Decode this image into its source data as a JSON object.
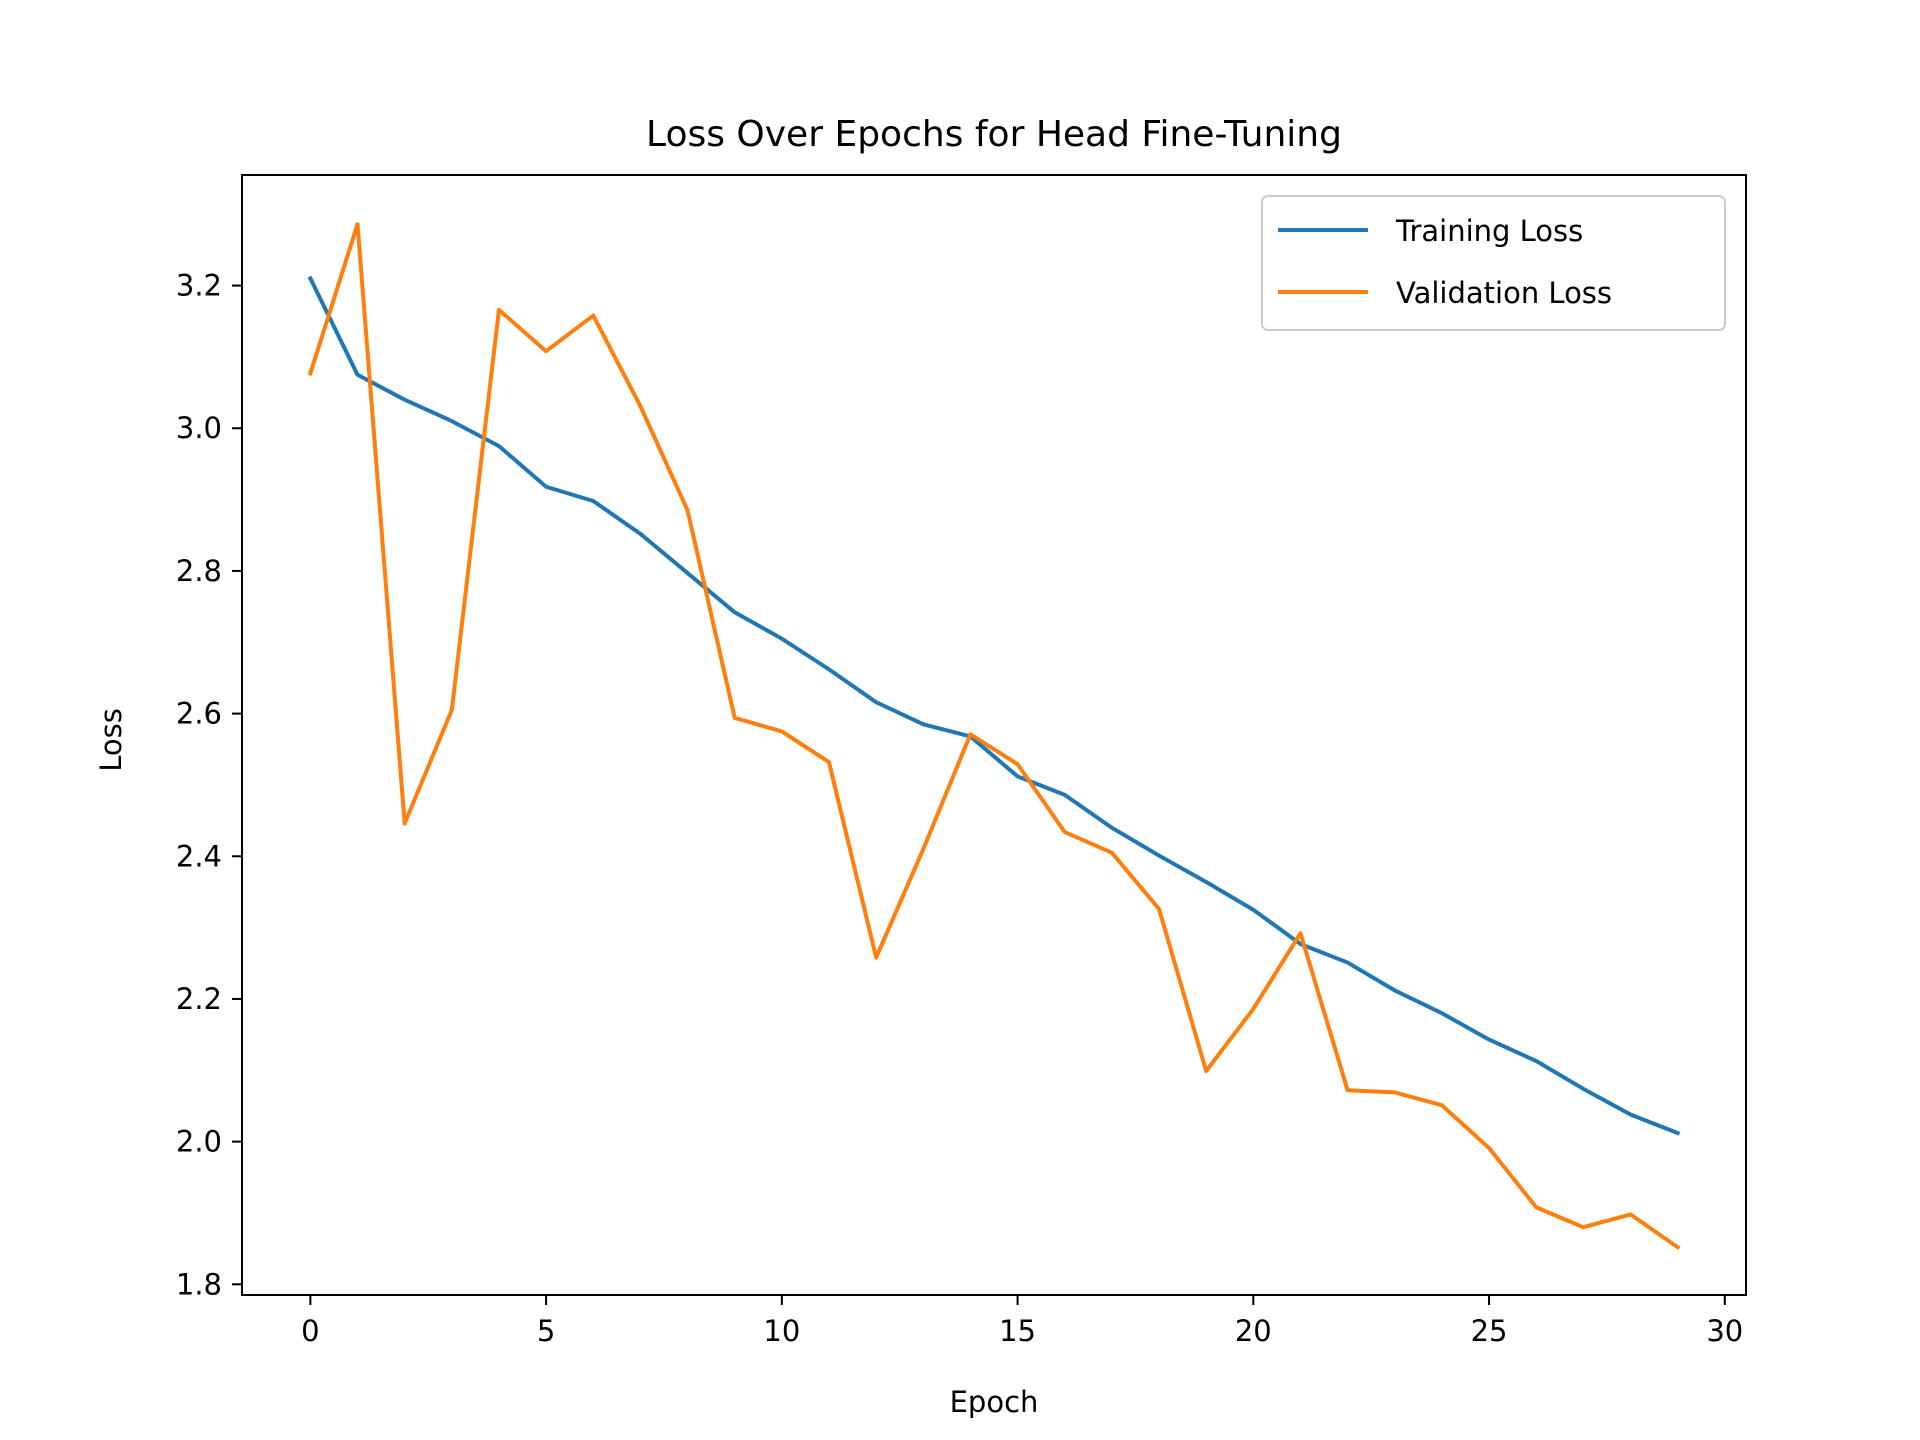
{
  "chart_data": {
    "type": "line",
    "title": "Loss Over Epochs for Head Fine-Tuning",
    "xlabel": "Epoch",
    "ylabel": "Loss",
    "xlim": [
      -1.45,
      30.45
    ],
    "ylim": [
      1.785,
      3.355
    ],
    "xticks": [
      0,
      5,
      10,
      15,
      20,
      25,
      30
    ],
    "xtick_labels": [
      "0",
      "5",
      "10",
      "15",
      "20",
      "25",
      "30"
    ],
    "yticks": [
      1.8,
      2.0,
      2.2,
      2.4,
      2.6,
      2.8,
      3.0,
      3.2
    ],
    "ytick_labels": [
      "1.8",
      "2.0",
      "2.2",
      "2.4",
      "2.6",
      "2.8",
      "3.0",
      "3.2"
    ],
    "grid": false,
    "legend_position": "upper right",
    "x": [
      0,
      1,
      2,
      3,
      4,
      5,
      6,
      7,
      8,
      9,
      10,
      11,
      12,
      13,
      14,
      15,
      16,
      17,
      18,
      19,
      20,
      21,
      22,
      23,
      24,
      25,
      26,
      27,
      28,
      29
    ],
    "series": [
      {
        "name": "Training Loss",
        "color": "#1f77b4",
        "values": [
          3.21,
          3.075,
          3.04,
          3.01,
          2.975,
          2.918,
          2.898,
          2.852,
          2.797,
          2.742,
          2.705,
          2.662,
          2.616,
          2.585,
          2.568,
          2.512,
          2.486,
          2.44,
          2.401,
          2.364,
          2.325,
          2.277,
          2.251,
          2.212,
          2.18,
          2.143,
          2.113,
          2.074,
          2.038,
          2.012
        ]
      },
      {
        "name": "Validation Loss",
        "color": "#ff7f0e",
        "values": [
          3.077,
          3.286,
          2.446,
          2.605,
          3.166,
          3.108,
          3.158,
          3.031,
          2.885,
          2.594,
          2.575,
          2.532,
          2.258,
          2.41,
          2.571,
          2.529,
          2.434,
          2.405,
          2.326,
          2.099,
          2.186,
          2.292,
          2.072,
          2.069,
          2.051,
          1.991,
          1.908,
          1.88,
          1.898,
          1.852
        ]
      }
    ]
  }
}
